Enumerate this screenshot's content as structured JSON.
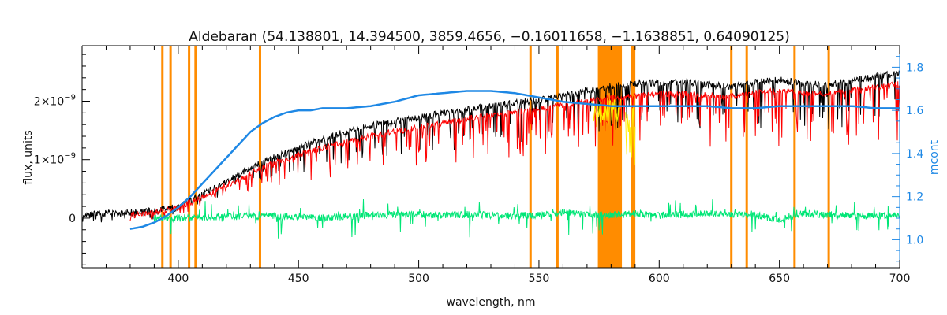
{
  "chart_data": {
    "type": "line",
    "title": "Aldebaran    (54.138801, 14.394500, 3859.4656, −0.16011658, −1.1638851, 0.64090125)",
    "xlabel": "wavelength, nm",
    "ylabel": "flux, units",
    "y2label": "mcont",
    "xlim": [
      360,
      700
    ],
    "ylim": [
      -8.5e-10,
      2.95e-09
    ],
    "y2lim": [
      0.87,
      1.9
    ],
    "xticks": [
      {
        "value": 400,
        "label": "400"
      },
      {
        "value": 450,
        "label": "450"
      },
      {
        "value": 500,
        "label": "500"
      },
      {
        "value": 550,
        "label": "550"
      },
      {
        "value": 600,
        "label": "600"
      },
      {
        "value": 650,
        "label": "650"
      },
      {
        "value": 700,
        "label": "700"
      }
    ],
    "yticks": [
      {
        "value": 0,
        "base": "0",
        "exp": ""
      },
      {
        "value": 1e-09,
        "base": "1×10",
        "exp": "−9"
      },
      {
        "value": 2e-09,
        "base": "2×10",
        "exp": "−9"
      }
    ],
    "y2ticks": [
      {
        "value": 1.0,
        "label": "1.0"
      },
      {
        "value": 1.2,
        "label": "1.2"
      },
      {
        "value": 1.4,
        "label": "1.4"
      },
      {
        "value": 1.6,
        "label": "1.6"
      },
      {
        "value": 1.8,
        "label": "1.8"
      }
    ],
    "masked_lines_nm": [
      393.4,
      396.8,
      404.5,
      407.2,
      434.0,
      546.5,
      557.7,
      588.9,
      589.6,
      630.0,
      636.4,
      656.3,
      670.5
    ],
    "masked_band_nm": [
      574.5,
      584.5
    ],
    "series": [
      {
        "role": "observed",
        "color": "#000000",
        "axis": "left",
        "x": [
          360,
          380,
          390,
          400,
          410,
          420,
          430,
          440,
          450,
          460,
          470,
          480,
          490,
          500,
          510,
          520,
          530,
          540,
          550,
          560,
          570,
          580,
          590,
          600,
          610,
          620,
          630,
          640,
          650,
          660,
          670,
          680,
          690,
          700
        ],
        "y": [
          5e-11,
          1e-10,
          1.2e-10,
          2e-10,
          4e-10,
          6.2e-10,
          8.5e-10,
          1.05e-09,
          1.2e-09,
          1.35e-09,
          1.48e-09,
          1.58e-09,
          1.65e-09,
          1.72e-09,
          1.8e-09,
          1.86e-09,
          1.92e-09,
          1.97e-09,
          2.02e-09,
          2.1e-09,
          2.18e-09,
          2.25e-09,
          2.3e-09,
          2.32e-09,
          2.33e-09,
          2.28e-09,
          2.25e-09,
          2.32e-09,
          2.36e-09,
          2.3e-09,
          2.28e-09,
          2.35e-09,
          2.42e-09,
          2.48e-09
        ]
      },
      {
        "role": "model",
        "color": "#ff0000",
        "axis": "left",
        "x": [
          380,
          390,
          400,
          410,
          420,
          430,
          440,
          450,
          460,
          470,
          480,
          490,
          500,
          510,
          520,
          530,
          540,
          550,
          560,
          570,
          580,
          590,
          600,
          610,
          620,
          630,
          640,
          650,
          660,
          670,
          680,
          690,
          700
        ],
        "y": [
          8e-11,
          1e-10,
          1.8e-10,
          3.6e-10,
          5.6e-10,
          7.6e-10,
          9.5e-10,
          1.08e-09,
          1.2e-09,
          1.3e-09,
          1.4e-09,
          1.48e-09,
          1.56e-09,
          1.62e-09,
          1.7e-09,
          1.76e-09,
          1.82e-09,
          1.86e-09,
          1.94e-09,
          2e-09,
          2.06e-09,
          2.1e-09,
          2.12e-09,
          2.14e-09,
          2.1e-09,
          2.08e-09,
          2.14e-09,
          2.18e-09,
          2.14e-09,
          2.12e-09,
          2.18e-09,
          2.24e-09,
          2.3e-09
        ]
      },
      {
        "role": "residual",
        "color": "#00e676",
        "axis": "left",
        "x": [
          390,
          400,
          410,
          420,
          430,
          440,
          450,
          460,
          470,
          480,
          490,
          500,
          510,
          520,
          530,
          540,
          550,
          560,
          570,
          580,
          590,
          600,
          610,
          620,
          630,
          640,
          650,
          660,
          670,
          680,
          690,
          700
        ],
        "y": [
          0.0,
          0.0,
          0.0,
          2e-11,
          3e-11,
          4e-11,
          3e-11,
          0.0,
          3e-11,
          5e-11,
          6e-11,
          6e-11,
          5e-11,
          6e-11,
          5e-11,
          4e-11,
          5e-11,
          1e-10,
          5e-11,
          6e-11,
          8e-11,
          5e-11,
          6e-11,
          8e-11,
          6e-11,
          5e-11,
          -2e-11,
          8e-11,
          6e-11,
          4e-11,
          4e-11,
          5e-11
        ]
      },
      {
        "role": "continuum",
        "color": "#1e88e5",
        "axis": "right",
        "x": [
          380,
          385,
          390,
          395,
          400,
          405,
          410,
          415,
          420,
          425,
          430,
          435,
          440,
          445,
          450,
          455,
          460,
          470,
          480,
          490,
          500,
          510,
          520,
          530,
          540,
          550,
          560,
          570,
          580,
          590,
          600,
          610,
          620,
          630,
          640,
          650,
          660,
          670,
          680,
          690,
          700
        ],
        "y": [
          1.05,
          1.06,
          1.08,
          1.11,
          1.15,
          1.2,
          1.26,
          1.32,
          1.38,
          1.44,
          1.5,
          1.54,
          1.57,
          1.59,
          1.6,
          1.6,
          1.61,
          1.61,
          1.62,
          1.64,
          1.67,
          1.68,
          1.69,
          1.69,
          1.68,
          1.66,
          1.64,
          1.63,
          1.62,
          1.62,
          1.62,
          1.62,
          1.62,
          1.61,
          1.61,
          1.62,
          1.62,
          1.62,
          1.62,
          1.61,
          1.61
        ]
      }
    ]
  }
}
